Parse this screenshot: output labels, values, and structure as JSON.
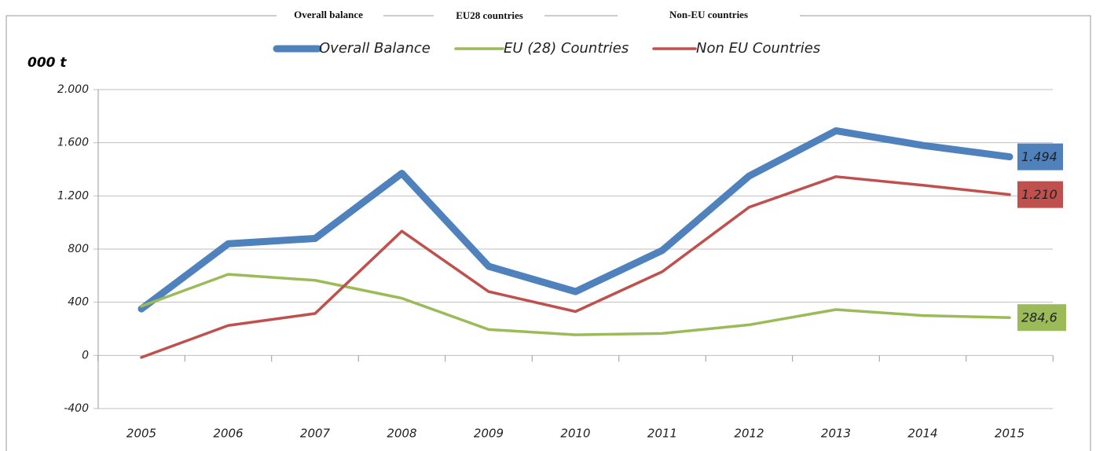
{
  "header": [
    "Overall balance",
    "EU28 countries",
    "Non-EU countries"
  ],
  "chart_data": {
    "type": "line",
    "y_label": "000 t",
    "categories": [
      "2005",
      "2006",
      "2007",
      "2008",
      "2009",
      "2010",
      "2011",
      "2012",
      "2013",
      "2014",
      "2015"
    ],
    "series": [
      {
        "name": "Overall Balance",
        "color": "#4f81bd",
        "values": [
          350,
          840,
          880,
          1370,
          670,
          480,
          790,
          1350,
          1690,
          1580,
          1494
        ],
        "value_labels": [
          null,
          null,
          null,
          null,
          null,
          null,
          null,
          null,
          null,
          null,
          "1.494"
        ]
      },
      {
        "name": "EU (28) Countries",
        "color": "#9bbb59",
        "values": [
          370,
          610,
          565,
          430,
          195,
          155,
          165,
          230,
          345,
          300,
          284.6
        ],
        "value_labels": [
          null,
          null,
          null,
          null,
          null,
          null,
          null,
          null,
          null,
          null,
          "284,6"
        ]
      },
      {
        "name": "Non EU Countries",
        "color": "#c0504d",
        "values": [
          -15,
          225,
          315,
          935,
          480,
          330,
          630,
          1115,
          1345,
          1280,
          1210
        ],
        "value_labels": [
          null,
          null,
          null,
          null,
          null,
          null,
          null,
          null,
          null,
          null,
          "1.210"
        ]
      }
    ],
    "ylim": [
      -400,
      2000
    ],
    "yticks": [
      {
        "value": 2000,
        "label": "2.000"
      },
      {
        "value": 1600,
        "label": "1.600"
      },
      {
        "value": 1200,
        "label": "1.200"
      },
      800,
      400,
      0,
      -400
    ],
    "grid": true
  }
}
